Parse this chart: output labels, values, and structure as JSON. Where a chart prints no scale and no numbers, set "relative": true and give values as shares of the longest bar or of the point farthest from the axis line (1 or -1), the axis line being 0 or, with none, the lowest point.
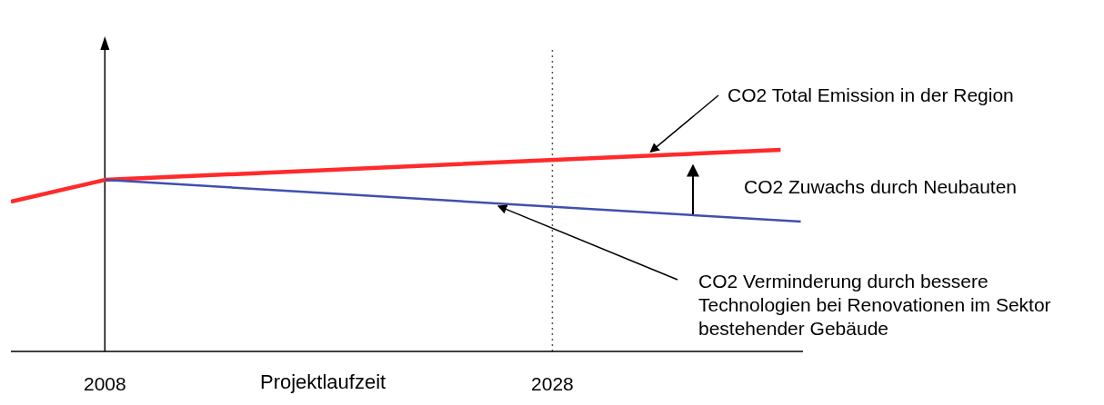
{
  "chart_data": {
    "type": "line",
    "relative": true,
    "xlabel": "Projektlaufzeit",
    "xlim": [
      2003.8,
      2039.2
    ],
    "xticks": [
      2008,
      2028
    ],
    "marker": "none",
    "series": [
      {
        "x": [
          2003.8,
          2008,
          2038.2
        ],
        "values": [
          0.743,
          0.851,
          1
        ],
        "color": "#ff2a2a"
      },
      {
        "x": [
          2008,
          2039.1
        ],
        "values": [
          0.851,
          0.644
        ],
        "color": "#3f4fb0"
      }
    ],
    "ref_lines": [
      {
        "axis": "x",
        "value": 2028,
        "color": "#555555",
        "line_style": "dotted"
      },
      {
        "axis": "x",
        "value": 2008,
        "color": "#000000",
        "line_style": "solid"
      }
    ],
    "annotations": [
      {
        "text": "CO2 Total Emission in der Region",
        "x": 2032.3,
        "y": 0.971
      },
      "CO2 Zuwachs durch Neubauten",
      {
        "text": "CO2 Verminderung durch bessere Technologien bei Renovationen im Sektor bestehender Gebäude",
        "x": 2025.5,
        "y": 0.735
      }
    ]
  }
}
